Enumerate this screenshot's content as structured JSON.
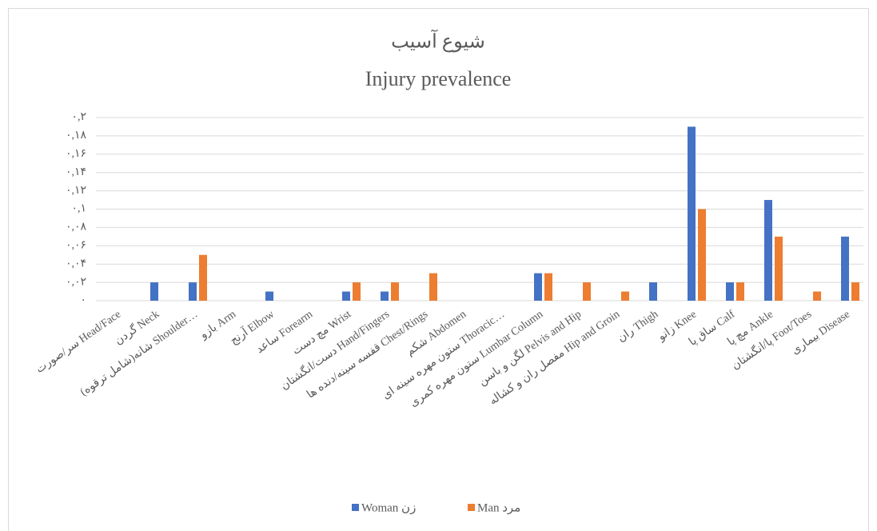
{
  "chart_data": {
    "type": "bar",
    "title": "شیوع آسیب",
    "subtitle": "Injury prevalence",
    "categories": [
      "سر/صورت Head/Face",
      "گردن Neck",
      "شانه(شامل ترقوه) Shoulder…",
      "بازو Arm",
      "آرنج Elbow",
      "ساعد Forearm",
      "مچ دست Wrist",
      "دست/انگشتان Hand/Fingers",
      "قفسه سینه/دنده ها Chest/Rings",
      "شکم Abdomen",
      "ستون مهره سینه ای Thoracic…",
      "ستون مهره کمری Lumbar Column",
      "لگن و باسن Pelvis and Hip",
      "مفصل ران و کشاله Hip and Groin",
      "ران Thigh",
      "زانو Knee",
      "ساق پا Calf",
      "مچ پا Ankle",
      "پا/انگشتان Foot/Toes",
      "بیماری Disease"
    ],
    "series": [
      {
        "name": "Woman زن",
        "color": "#4472c4",
        "values": [
          0,
          0.02,
          0.02,
          0,
          0.01,
          0,
          0.01,
          0.01,
          0,
          0,
          0,
          0.03,
          0,
          0,
          0.02,
          0.19,
          0.02,
          0.11,
          0,
          0.07
        ]
      },
      {
        "name": "Man مرد",
        "color": "#ed7d31",
        "values": [
          0,
          0,
          0.05,
          0,
          0,
          0,
          0.02,
          0.02,
          0.03,
          0,
          0,
          0.03,
          0.02,
          0.01,
          0,
          0.1,
          0.02,
          0.07,
          0.01,
          0.02
        ]
      }
    ],
    "ylim": [
      0,
      0.2
    ],
    "yticks": [
      {
        "value": 0,
        "label": "۰"
      },
      {
        "value": 0.02,
        "label": "۰,۰۲"
      },
      {
        "value": 0.04,
        "label": "۰,۰۴"
      },
      {
        "value": 0.06,
        "label": "۰,۰۶"
      },
      {
        "value": 0.08,
        "label": "۰,۰۸"
      },
      {
        "value": 0.1,
        "label": "۰,۱"
      },
      {
        "value": 0.12,
        "label": "۰,۱۲"
      },
      {
        "value": 0.14,
        "label": "۰,۱۴"
      },
      {
        "value": 0.16,
        "label": "۰,۱۶"
      },
      {
        "value": 0.18,
        "label": "۰,۱۸"
      },
      {
        "value": 0.2,
        "label": "۰,۲"
      }
    ],
    "grid": true,
    "legend": "bottom"
  }
}
